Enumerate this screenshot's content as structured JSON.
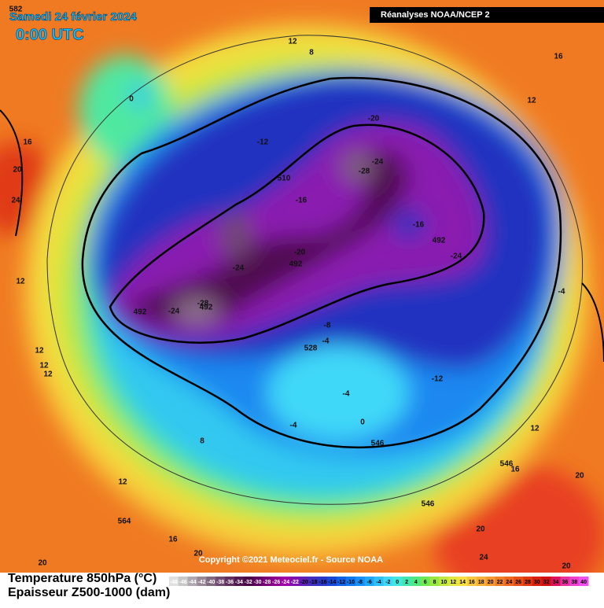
{
  "header": {
    "date": "Samedi 24 février 2024",
    "time": "0:00 UTC",
    "source_box": "Réanalyses NOAA/NCEP 2"
  },
  "map": {
    "labels": [
      582,
      12,
      8,
      16,
      0,
      12,
      16,
      -20,
      -12,
      -24,
      -28,
      20,
      510,
      24,
      -16,
      -16,
      492,
      -24,
      -20,
      492,
      -24,
      12,
      -4,
      492,
      -24,
      -28,
      492,
      -8,
      -4,
      528,
      12,
      12,
      12,
      -12,
      -4,
      0,
      -4,
      12,
      8,
      546,
      546,
      16,
      20,
      12,
      546,
      564,
      20,
      16,
      20,
      20,
      24,
      20
    ],
    "copyright": "Copyright ©2021 Meteociel.fr - Source NOAA"
  },
  "legend": {
    "title": "Temperature 850hPa (°C)",
    "subtitle": "Epaisseur Z500-1000 (dam)",
    "labels": [
      -48,
      -46,
      -44,
      -42,
      -40,
      -38,
      -36,
      -34,
      -32,
      -30,
      -28,
      -26,
      -24,
      -22,
      -20,
      -18,
      -16,
      -14,
      -12,
      -10,
      -8,
      -6,
      -4,
      -2,
      0,
      2,
      4,
      6,
      8,
      10,
      12,
      14,
      16,
      18,
      20,
      22,
      24,
      26,
      28,
      30,
      32,
      34,
      36,
      38,
      40
    ],
    "colors": [
      "#e0e0e0",
      "#c8c8c8",
      "#b0a8b0",
      "#988898",
      "#806880",
      "#704870",
      "#603060",
      "#501850",
      "#480848",
      "#600060",
      "#780078",
      "#900090",
      "#a000a8",
      "#8010b0",
      "#6020b8",
      "#4030c0",
      "#2838c8",
      "#1848d8",
      "#1060e8",
      "#1078f0",
      "#1890f8",
      "#20a8f8",
      "#30c0f8",
      "#40d8f8",
      "#40e8e0",
      "#40e8b0",
      "#50e880",
      "#70e850",
      "#98e840",
      "#c0e840",
      "#e0e840",
      "#f8e040",
      "#f8c840",
      "#f8b038",
      "#f89830",
      "#f08028",
      "#f06820",
      "#e85018",
      "#e03810",
      "#d82010",
      "#d01010",
      "#e01060",
      "#e830a0",
      "#f040d0",
      "#f050f0"
    ]
  }
}
